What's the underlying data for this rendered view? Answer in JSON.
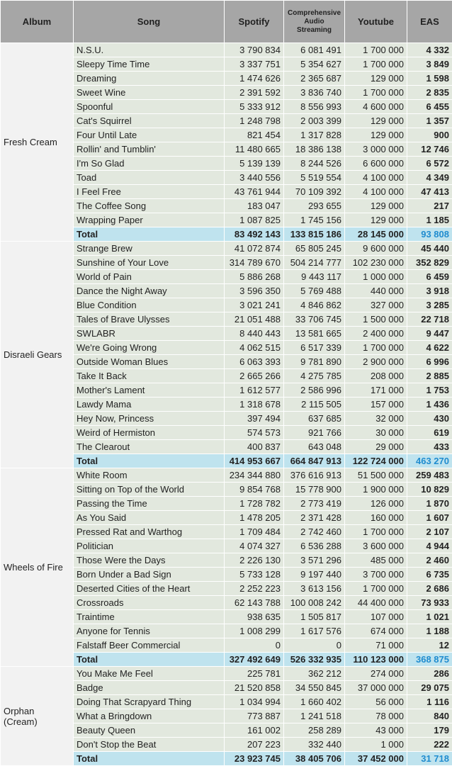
{
  "headers": {
    "album": "Album",
    "song": "Song",
    "spotify": "Spotify",
    "cas": "Comprehensive Audio Streaming",
    "youtube": "Youtube",
    "eas": "EAS"
  },
  "groups": [
    {
      "album": "Fresh Cream",
      "rows": [
        {
          "song": "N.S.U.",
          "spotify": "3 790 834",
          "cas": "6 081 491",
          "youtube": "1 700 000",
          "eas": "4 332"
        },
        {
          "song": "Sleepy Time Time",
          "spotify": "3 337 751",
          "cas": "5 354 627",
          "youtube": "1 700 000",
          "eas": "3 849"
        },
        {
          "song": "Dreaming",
          "spotify": "1 474 626",
          "cas": "2 365 687",
          "youtube": "129 000",
          "eas": "1 598"
        },
        {
          "song": "Sweet Wine",
          "spotify": "2 391 592",
          "cas": "3 836 740",
          "youtube": "1 700 000",
          "eas": "2 835"
        },
        {
          "song": "Spoonful",
          "spotify": "5 333 912",
          "cas": "8 556 993",
          "youtube": "4 600 000",
          "eas": "6 455"
        },
        {
          "song": "Cat's Squirrel",
          "spotify": "1 248 798",
          "cas": "2 003 399",
          "youtube": "129 000",
          "eas": "1 357"
        },
        {
          "song": "Four Until Late",
          "spotify": "821 454",
          "cas": "1 317 828",
          "youtube": "129 000",
          "eas": "900"
        },
        {
          "song": "Rollin' and Tumblin'",
          "spotify": "11 480 665",
          "cas": "18 386 138",
          "youtube": "3 000 000",
          "eas": "12 746"
        },
        {
          "song": "I'm So Glad",
          "spotify": "5 139 139",
          "cas": "8 244 526",
          "youtube": "6 600 000",
          "eas": "6 572"
        },
        {
          "song": "Toad",
          "spotify": "3 440 556",
          "cas": "5 519 554",
          "youtube": "4 100 000",
          "eas": "4 349"
        },
        {
          "song": "I Feel Free",
          "spotify": "43 761 944",
          "cas": "70 109 392",
          "youtube": "4 100 000",
          "eas": "47 413"
        },
        {
          "song": "The Coffee Song",
          "spotify": "183 047",
          "cas": "293 655",
          "youtube": "129 000",
          "eas": "217"
        },
        {
          "song": "Wrapping Paper",
          "spotify": "1 087 825",
          "cas": "1 745 156",
          "youtube": "129 000",
          "eas": "1 185"
        }
      ],
      "total": {
        "label": "Total",
        "spotify": "83 492 143",
        "cas": "133 815 186",
        "youtube": "28 145 000",
        "eas": "93 808"
      }
    },
    {
      "album": "Disraeli Gears",
      "rows": [
        {
          "song": "Strange Brew",
          "spotify": "41 072 874",
          "cas": "65 805 245",
          "youtube": "9 600 000",
          "eas": "45 440"
        },
        {
          "song": "Sunshine of Your Love",
          "spotify": "314 789 670",
          "cas": "504 214 777",
          "youtube": "102 230 000",
          "eas": "352 829"
        },
        {
          "song": "World of Pain",
          "spotify": "5 886 268",
          "cas": "9 443 117",
          "youtube": "1 000 000",
          "eas": "6 459"
        },
        {
          "song": "Dance the Night Away",
          "spotify": "3 596 350",
          "cas": "5 769 488",
          "youtube": "440 000",
          "eas": "3 918"
        },
        {
          "song": "Blue Condition",
          "spotify": "3 021 241",
          "cas": "4 846 862",
          "youtube": "327 000",
          "eas": "3 285"
        },
        {
          "song": "Tales of Brave Ulysses",
          "spotify": "21 051 488",
          "cas": "33 706 745",
          "youtube": "1 500 000",
          "eas": "22 718"
        },
        {
          "song": "SWLABR",
          "spotify": "8 440 443",
          "cas": "13 581 665",
          "youtube": "2 400 000",
          "eas": "9 447"
        },
        {
          "song": "We're Going Wrong",
          "spotify": "4 062 515",
          "cas": "6 517 339",
          "youtube": "1 700 000",
          "eas": "4 622"
        },
        {
          "song": "Outside Woman Blues",
          "spotify": "6 063 393",
          "cas": "9 781 890",
          "youtube": "2 900 000",
          "eas": "6 996"
        },
        {
          "song": "Take It Back",
          "spotify": "2 665 266",
          "cas": "4 275 785",
          "youtube": "208 000",
          "eas": "2 885"
        },
        {
          "song": "Mother's Lament",
          "spotify": "1 612 577",
          "cas": "2 586 996",
          "youtube": "171 000",
          "eas": "1 753"
        },
        {
          "song": "Lawdy Mama",
          "spotify": "1 318 678",
          "cas": "2 115 505",
          "youtube": "157 000",
          "eas": "1 436"
        },
        {
          "song": "Hey Now, Princess",
          "spotify": "397 494",
          "cas": "637 685",
          "youtube": "32 000",
          "eas": "430"
        },
        {
          "song": "Weird of Hermiston",
          "spotify": "574 573",
          "cas": "921 766",
          "youtube": "30 000",
          "eas": "619"
        },
        {
          "song": "The Clearout",
          "spotify": "400 837",
          "cas": "643 048",
          "youtube": "29 000",
          "eas": "433"
        }
      ],
      "total": {
        "label": "Total",
        "spotify": "414 953 667",
        "cas": "664 847 913",
        "youtube": "122 724 000",
        "eas": "463 270"
      }
    },
    {
      "album": "Wheels of Fire",
      "rows": [
        {
          "song": "White Room",
          "spotify": "234 344 880",
          "cas": "376 616 913",
          "youtube": "51 500 000",
          "eas": "259 483"
        },
        {
          "song": "Sitting on Top of the World",
          "spotify": "9 854 768",
          "cas": "15 778 900",
          "youtube": "1 900 000",
          "eas": "10 829"
        },
        {
          "song": "Passing the Time",
          "spotify": "1 728 782",
          "cas": "2 773 419",
          "youtube": "126 000",
          "eas": "1 870"
        },
        {
          "song": "As You Said",
          "spotify": "1 478 205",
          "cas": "2 371 428",
          "youtube": "160 000",
          "eas": "1 607"
        },
        {
          "song": "Pressed Rat and Warthog",
          "spotify": "1 709 484",
          "cas": "2 742 460",
          "youtube": "1 700 000",
          "eas": "2 107"
        },
        {
          "song": "Politician",
          "spotify": "4 074 327",
          "cas": "6 536 288",
          "youtube": "3 600 000",
          "eas": "4 944"
        },
        {
          "song": "Those Were the Days",
          "spotify": "2 226 130",
          "cas": "3 571 296",
          "youtube": "485 000",
          "eas": "2 460"
        },
        {
          "song": "Born Under a Bad Sign",
          "spotify": "5 733 128",
          "cas": "9 197 440",
          "youtube": "3 700 000",
          "eas": "6 735"
        },
        {
          "song": "Deserted Cities of the Heart",
          "spotify": "2 252 223",
          "cas": "3 613 156",
          "youtube": "1 700 000",
          "eas": "2 686"
        },
        {
          "song": "Crossroads",
          "spotify": "62 143 788",
          "cas": "100 008 242",
          "youtube": "44 400 000",
          "eas": "73 933"
        },
        {
          "song": "Traintime",
          "spotify": "938 635",
          "cas": "1 505 817",
          "youtube": "107 000",
          "eas": "1 021"
        },
        {
          "song": "Anyone for Tennis",
          "spotify": "1 008 299",
          "cas": "1 617 576",
          "youtube": "674 000",
          "eas": "1 188"
        },
        {
          "song": "Falstaff Beer Commercial",
          "spotify": "0",
          "cas": "0",
          "youtube": "71 000",
          "eas": "12"
        }
      ],
      "total": {
        "label": "Total",
        "spotify": "327 492 649",
        "cas": "526 332 935",
        "youtube": "110 123 000",
        "eas": "368 875"
      }
    },
    {
      "album": "Orphan (Cream)",
      "rows": [
        {
          "song": "You Make Me Feel",
          "spotify": "225 781",
          "cas": "362 212",
          "youtube": "274 000",
          "eas": "286"
        },
        {
          "song": "Badge",
          "spotify": "21 520 858",
          "cas": "34 550 845",
          "youtube": "37 000 000",
          "eas": "29 075"
        },
        {
          "song": "Doing That Scrapyard Thing",
          "spotify": "1 034 994",
          "cas": "1 660 402",
          "youtube": "56 000",
          "eas": "1 116"
        },
        {
          "song": "What a Bringdown",
          "spotify": "773 887",
          "cas": "1 241 518",
          "youtube": "78 000",
          "eas": "840"
        },
        {
          "song": "Beauty Queen",
          "spotify": "161 002",
          "cas": "258 289",
          "youtube": "43 000",
          "eas": "179"
        },
        {
          "song": "Don't Stop the Beat",
          "spotify": "207 223",
          "cas": "332 440",
          "youtube": "1 000",
          "eas": "222"
        }
      ],
      "total": {
        "label": "Total",
        "spotify": "23 923 745",
        "cas": "38 405 706",
        "youtube": "37 452 000",
        "eas": "31 718"
      }
    }
  ]
}
